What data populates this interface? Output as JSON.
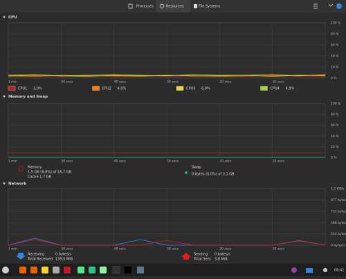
{
  "header": {
    "tabs": [
      "Processes",
      "Resources",
      "File Systems"
    ]
  },
  "cpu": {
    "title": "CPU",
    "ylim": [
      0,
      100
    ],
    "yticks": [
      {
        "value": 0,
        "label": "0 %"
      },
      {
        "value": 20,
        "label": "20 %"
      },
      {
        "value": 40,
        "label": "40 %"
      },
      {
        "value": 60,
        "label": "60 %"
      },
      {
        "value": 80,
        "label": "80 %"
      },
      {
        "value": 100,
        "label": "100 %"
      }
    ],
    "xlim": [
      60,
      0
    ],
    "xticks": [
      {
        "value": 60,
        "label": "1 min"
      },
      {
        "value": 50,
        "label": "50 secs"
      },
      {
        "value": 40,
        "label": "40 secs"
      },
      {
        "value": 30,
        "label": "30 secs"
      },
      {
        "value": 20,
        "label": "20 secs"
      },
      {
        "value": 10,
        "label": "10 secs"
      }
    ],
    "x": [
      60,
      55,
      50,
      45,
      40,
      35,
      30,
      25,
      20,
      15,
      10,
      5,
      0
    ],
    "series": [
      {
        "name": "CPU1",
        "value_label": "3,0%",
        "color": "#c01c28",
        "values": [
          3,
          4,
          3,
          5,
          3,
          4,
          3,
          3,
          4,
          3,
          5,
          3,
          3
        ]
      },
      {
        "name": "CPU2",
        "value_label": "4,0%",
        "color": "#ff7800",
        "values": [
          4,
          3,
          5,
          4,
          4,
          3,
          5,
          4,
          3,
          4,
          4,
          5,
          4
        ]
      },
      {
        "name": "CPU3",
        "value_label": "6,0%",
        "color": "#f6d32d",
        "values": [
          5,
          6,
          4,
          5,
          6,
          5,
          4,
          6,
          5,
          5,
          6,
          4,
          6
        ]
      },
      {
        "name": "CPU4",
        "value_label": "4,9%",
        "color": "#a6d62e",
        "values": [
          4,
          5,
          4,
          3,
          5,
          4,
          5,
          4,
          4,
          5,
          3,
          5,
          5
        ]
      }
    ]
  },
  "memory": {
    "title": "Memory and Swap",
    "ylim": [
      0,
      100
    ],
    "yticks": [
      {
        "value": 0,
        "label": "0 %"
      },
      {
        "value": 20,
        "label": "20 %"
      },
      {
        "value": 40,
        "label": "40 %"
      },
      {
        "value": 60,
        "label": "60 %"
      },
      {
        "value": 80,
        "label": "80 %"
      },
      {
        "value": 100,
        "label": "100 %"
      }
    ],
    "xlim": [
      60,
      0
    ],
    "xticks": [
      {
        "value": 60,
        "label": "1 min"
      },
      {
        "value": 50,
        "label": "50 secs"
      },
      {
        "value": 40,
        "label": "40 secs"
      },
      {
        "value": 30,
        "label": "30 secs"
      },
      {
        "value": 20,
        "label": "20 secs"
      },
      {
        "value": 10,
        "label": "10 secs"
      }
    ],
    "x": [
      60,
      0
    ],
    "series": [
      {
        "name": "Memory",
        "usage": "1,5 GB (8,8%) of 16,7 GB",
        "cache": "Cache 1,7 GB",
        "color": "#c01c28",
        "values": [
          8.8,
          8.8
        ]
      },
      {
        "name": "Swap",
        "usage": "0 bytes (0,0%) of 2,1 GB",
        "color": "#2ec27e",
        "values": [
          0,
          0
        ]
      }
    ]
  },
  "network": {
    "title": "Network",
    "ylim": [
      0,
      1222
    ],
    "yticks": [
      {
        "value": 0,
        "label": "0 bytes/s"
      },
      {
        "value": 244,
        "label": "244 bytes/s"
      },
      {
        "value": 488,
        "label": "488 bytes/s"
      },
      {
        "value": 733,
        "label": "733 bytes/s"
      },
      {
        "value": 977,
        "label": "977 bytes/s"
      },
      {
        "value": 1222,
        "label": "1,2 KiB/s"
      }
    ],
    "xlim": [
      60,
      0
    ],
    "xticks": [
      {
        "value": 60,
        "label": "1 min"
      },
      {
        "value": 50,
        "label": "50 secs"
      },
      {
        "value": 40,
        "label": "40 secs"
      },
      {
        "value": 30,
        "label": "30 secs"
      },
      {
        "value": 20,
        "label": "20 secs"
      },
      {
        "value": 10,
        "label": "10 secs"
      }
    ],
    "x": [
      60,
      55,
      50,
      45,
      40,
      35,
      30,
      25,
      20,
      15,
      10,
      5,
      0
    ],
    "series": [
      {
        "name": "Receiving",
        "rate": "0 bytes/s",
        "total_label": "Total Received",
        "total": "139,5 MiB",
        "color": "#3584e4",
        "values": [
          0,
          150,
          0,
          0,
          0,
          120,
          0,
          0,
          0,
          0,
          0,
          100,
          0
        ]
      },
      {
        "name": "Sending",
        "rate": "0 bytes/s",
        "total_label": "Total Sent",
        "total": "3,8 MiB",
        "color": "#e01b24",
        "values": [
          0,
          120,
          0,
          0,
          0,
          0,
          100,
          0,
          0,
          0,
          0,
          90,
          0
        ]
      }
    ]
  },
  "taskbar": {
    "time": "08:41"
  }
}
